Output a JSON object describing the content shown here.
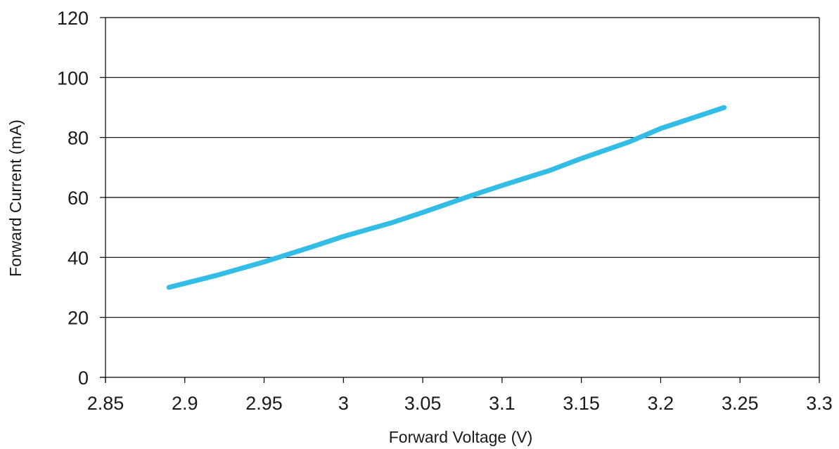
{
  "chart_data": {
    "type": "line",
    "title": "",
    "xlabel": "Forward Voltage (V)",
    "ylabel": "Forward Current (mA)",
    "xlim": [
      2.85,
      3.3
    ],
    "ylim": [
      0,
      120
    ],
    "x_ticks": [
      "2.85",
      "2.9",
      "2.95",
      "3",
      "3.05",
      "3.1",
      "3.15",
      "3.2",
      "3.25",
      "3.3"
    ],
    "y_ticks": [
      "0",
      "20",
      "40",
      "60",
      "80",
      "100",
      "120"
    ],
    "grid": "horizontal",
    "legend": "none",
    "series": [
      {
        "color": "#33bde6",
        "x": [
          2.89,
          2.92,
          2.95,
          2.98,
          3.0,
          3.03,
          3.05,
          3.08,
          3.1,
          3.13,
          3.15,
          3.18,
          3.2,
          3.22,
          3.24
        ],
        "y": [
          30,
          34,
          38.5,
          43.5,
          47,
          51.5,
          55,
          60.5,
          64,
          69,
          73,
          78.5,
          83,
          86.5,
          90
        ]
      }
    ]
  }
}
